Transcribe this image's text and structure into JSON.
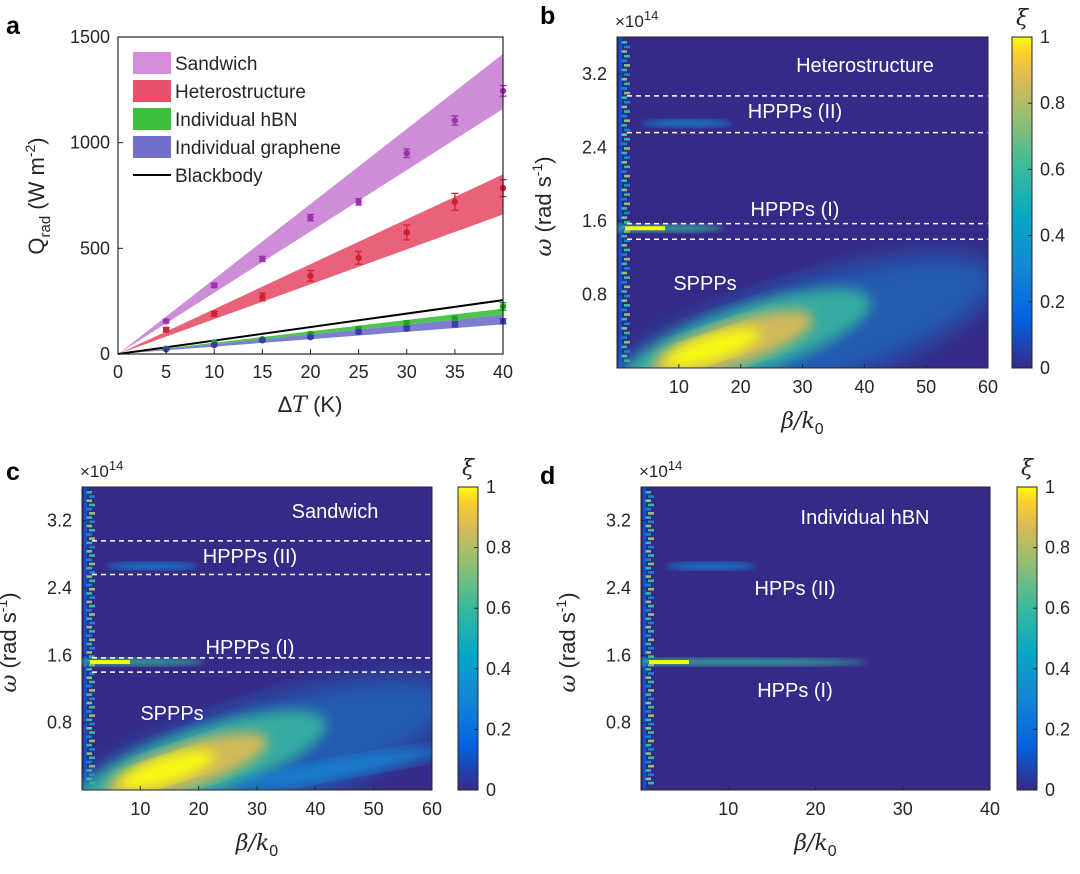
{
  "panel_letters": [
    "a",
    "b",
    "c",
    "d"
  ],
  "chart_data": [
    {
      "panel": "a",
      "type": "scatter",
      "title": "",
      "xlabel": "ΔT (K)",
      "ylabel": "Q_rad (W m^-2)",
      "xlabel_delta": "Δ",
      "xlabel_T": "T",
      "xlabel_unit": " (K)",
      "ylabel_main": "Q",
      "ylabel_sub": "rad",
      "ylabel_unit": " (W m",
      "ylabel_sup": "-2",
      "ylabel_close": ")",
      "xlim": [
        0,
        40
      ],
      "ylim": [
        0,
        1500
      ],
      "xticks": [
        "0",
        "5",
        "10",
        "15",
        "20",
        "25",
        "30",
        "35",
        "40"
      ],
      "yticks": [
        "0",
        "500",
        "1000",
        "1500"
      ],
      "x": [
        5,
        10,
        15,
        20,
        25,
        30,
        35,
        40
      ],
      "series": [
        {
          "name": "Sandwich",
          "color": "#c47ad0",
          "marker": "#a030b0",
          "band_low_at_40": 1160,
          "band_high_at_40": 1420,
          "values": [
            155,
            325,
            450,
            645,
            720,
            950,
            1105,
            1245
          ],
          "errors": [
            8,
            10,
            12,
            15,
            15,
            20,
            22,
            25
          ]
        },
        {
          "name": "Heterostructure",
          "color": "#e8506c",
          "marker": "#d02030",
          "band_low_at_40": 660,
          "band_high_at_40": 850,
          "values": [
            115,
            190,
            270,
            370,
            455,
            575,
            720,
            785
          ],
          "errors": [
            10,
            12,
            18,
            25,
            30,
            35,
            40,
            40
          ]
        },
        {
          "name": "Individual hBN",
          "color": "#3cbf3c",
          "marker": "#22a022",
          "band_low_at_40": 185,
          "band_high_at_40": 215,
          "values": [
            25,
            55,
            70,
            95,
            120,
            145,
            165,
            225
          ],
          "errors": [
            4,
            5,
            6,
            8,
            10,
            12,
            15,
            18
          ]
        },
        {
          "name": "Individual graphene",
          "color": "#7070cc",
          "marker": "#3a3ab0",
          "band_low_at_40": 140,
          "band_high_at_40": 185,
          "values": [
            22,
            42,
            65,
            80,
            105,
            120,
            140,
            155
          ],
          "errors": [
            3,
            4,
            5,
            6,
            8,
            10,
            12,
            12
          ]
        },
        {
          "name": "Blackbody",
          "color": "#000000",
          "line_at_40": 255
        }
      ]
    },
    {
      "panel": "b",
      "type": "heatmap",
      "exponent": "×10",
      "exponent_power": "14",
      "xlabel": "β/k0",
      "ylabel": "ω (rad s^-1)",
      "xlim": [
        0,
        60
      ],
      "ylim": [
        0,
        3.6
      ],
      "xticks": [
        "10",
        "20",
        "30",
        "40",
        "50",
        "60"
      ],
      "yticks": [
        "0.8",
        "1.6",
        "2.4",
        "3.2"
      ],
      "colorbar_label": "ξ",
      "colorbar_ticks": [
        "0",
        "0.2",
        "0.4",
        "0.6",
        "0.8",
        "1"
      ],
      "annotations": [
        "Heterostructure",
        "HPPPs (II)",
        "HPPPs (I)",
        "SPPPs"
      ],
      "dashed_lines_omega": [
        2.96,
        2.56,
        1.57,
        1.4
      ]
    },
    {
      "panel": "c",
      "type": "heatmap",
      "exponent": "×10",
      "exponent_power": "14",
      "xlabel": "β/k0",
      "ylabel": "ω (rad s^-1)",
      "xlim": [
        0,
        60
      ],
      "ylim": [
        0,
        3.6
      ],
      "xticks": [
        "10",
        "20",
        "30",
        "40",
        "50",
        "60"
      ],
      "yticks": [
        "0.8",
        "1.6",
        "2.4",
        "3.2"
      ],
      "colorbar_label": "ξ",
      "colorbar_ticks": [
        "0",
        "0.2",
        "0.4",
        "0.6",
        "0.8",
        "1"
      ],
      "annotations": [
        "Sandwich",
        "HPPPs (II)",
        "HPPPs (I)",
        "SPPPs"
      ],
      "dashed_lines_omega": [
        2.96,
        2.56,
        1.57,
        1.4
      ]
    },
    {
      "panel": "d",
      "type": "heatmap",
      "exponent": "×10",
      "exponent_power": "14",
      "xlabel": "β/k0",
      "ylabel": "ω (rad s^-1)",
      "xlim": [
        0,
        40
      ],
      "ylim": [
        0,
        3.6
      ],
      "xticks": [
        "10",
        "20",
        "30",
        "40"
      ],
      "yticks": [
        "0.8",
        "1.6",
        "2.4",
        "3.2"
      ],
      "colorbar_label": "ξ",
      "colorbar_ticks": [
        "0",
        "0.2",
        "0.4",
        "0.6",
        "0.8",
        "1"
      ],
      "annotations": [
        "Individual hBN",
        "HPPs (II)",
        "HPPs (I)"
      ],
      "dashed_lines_omega": []
    }
  ]
}
